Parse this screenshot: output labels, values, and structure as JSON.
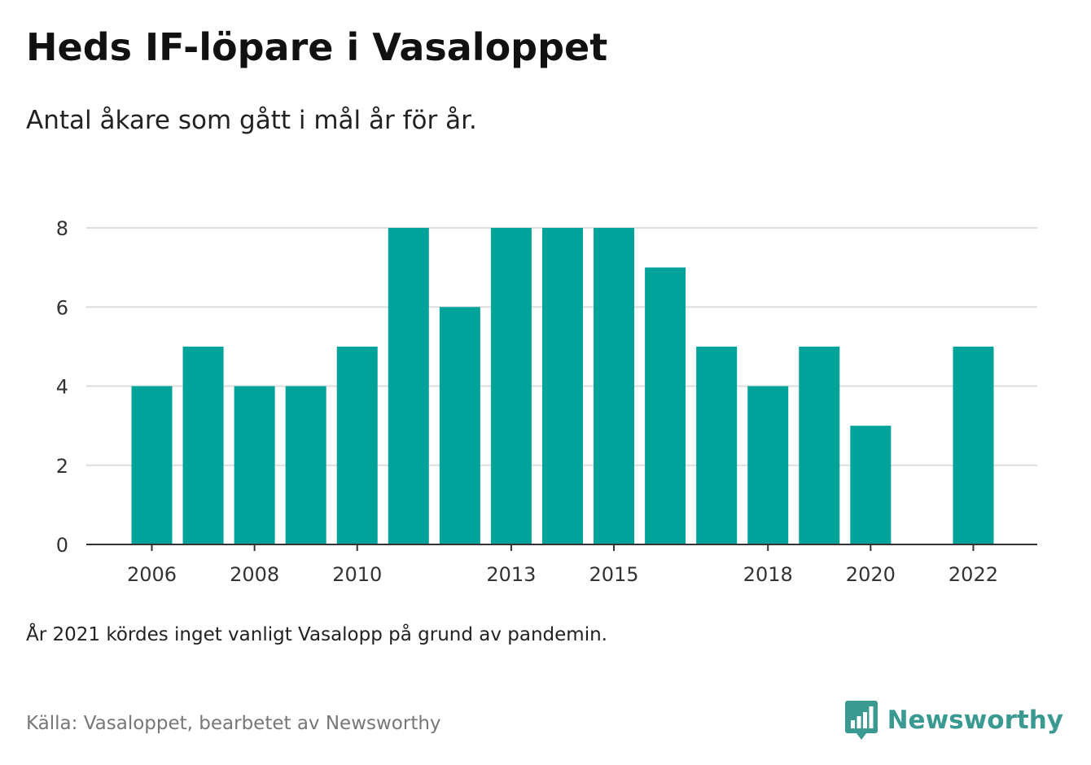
{
  "header": {
    "title": "Heds IF-löpare i Vasaloppet",
    "subtitle": "Antal åkare som gått i mål år för år."
  },
  "footer": {
    "note": "År 2021 kördes inget vanligt Vasalopp på grund av pandemin.",
    "source": "Källa: Vasaloppet, bearbetet av Newsworthy",
    "brand": "Newsworthy",
    "brand_icon": "newsworthy-logo-icon"
  },
  "colors": {
    "bar": "#00a39a",
    "grid": "#dddddd",
    "axis": "#333333",
    "brand": "#3a9a92"
  },
  "chart_data": {
    "type": "bar",
    "categories": [
      2006,
      2007,
      2008,
      2009,
      2010,
      2011,
      2012,
      2013,
      2014,
      2015,
      2016,
      2017,
      2018,
      2019,
      2020,
      2021,
      2022
    ],
    "values": [
      4,
      5,
      4,
      4,
      5,
      8,
      6,
      8,
      8,
      8,
      7,
      5,
      4,
      5,
      3,
      null,
      5
    ],
    "x_tick_labels": [
      "2006",
      "2008",
      "2010",
      "2013",
      "2015",
      "2018",
      "2020",
      "2022"
    ],
    "y_ticks": [
      0,
      2,
      4,
      6,
      8
    ],
    "ylim": [
      0,
      8
    ],
    "xlabel": "",
    "ylabel": "",
    "grid": true,
    "legend": "none"
  }
}
